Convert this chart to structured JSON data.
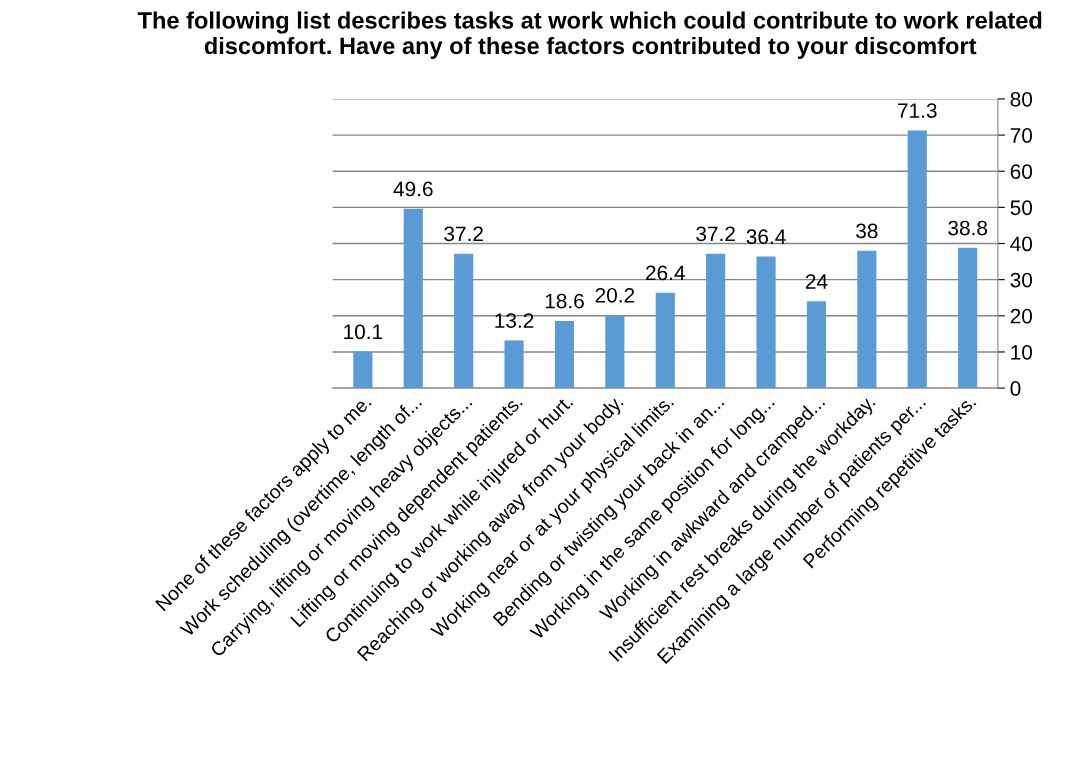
{
  "chart_data": {
    "type": "bar",
    "title": "The following list describes tasks at work which could contribute to work related discomfort. Have any of these factors contributed to your discomfort",
    "categories": [
      "None of these factors apply to me.",
      "Work scheduling (overtime, length of...",
      "Carrying, lifting or moving heavy objects...",
      "Lifting or moving dependent patients.",
      "Continuing to work while injured or hurt.",
      "Reaching or working away from your body.",
      "Working near or at your physical limits.",
      "Bending or twisting your back in an...",
      "Working in the same position for long...",
      "Working in awkward and cramped...",
      "Insufficient rest breaks during the workday.",
      "Examining a large number of patients per...",
      "Performing repetitive tasks."
    ],
    "values": [
      10.1,
      49.6,
      37.2,
      13.2,
      18.6,
      20.2,
      26.4,
      37.2,
      36.4,
      24,
      38,
      71.3,
      38.8
    ],
    "color": "#5b9bd5",
    "ylim": [
      0,
      80
    ],
    "yticks": [
      0,
      10,
      20,
      30,
      40,
      50,
      60,
      70,
      80
    ],
    "grid": "y",
    "data_labels": true
  }
}
